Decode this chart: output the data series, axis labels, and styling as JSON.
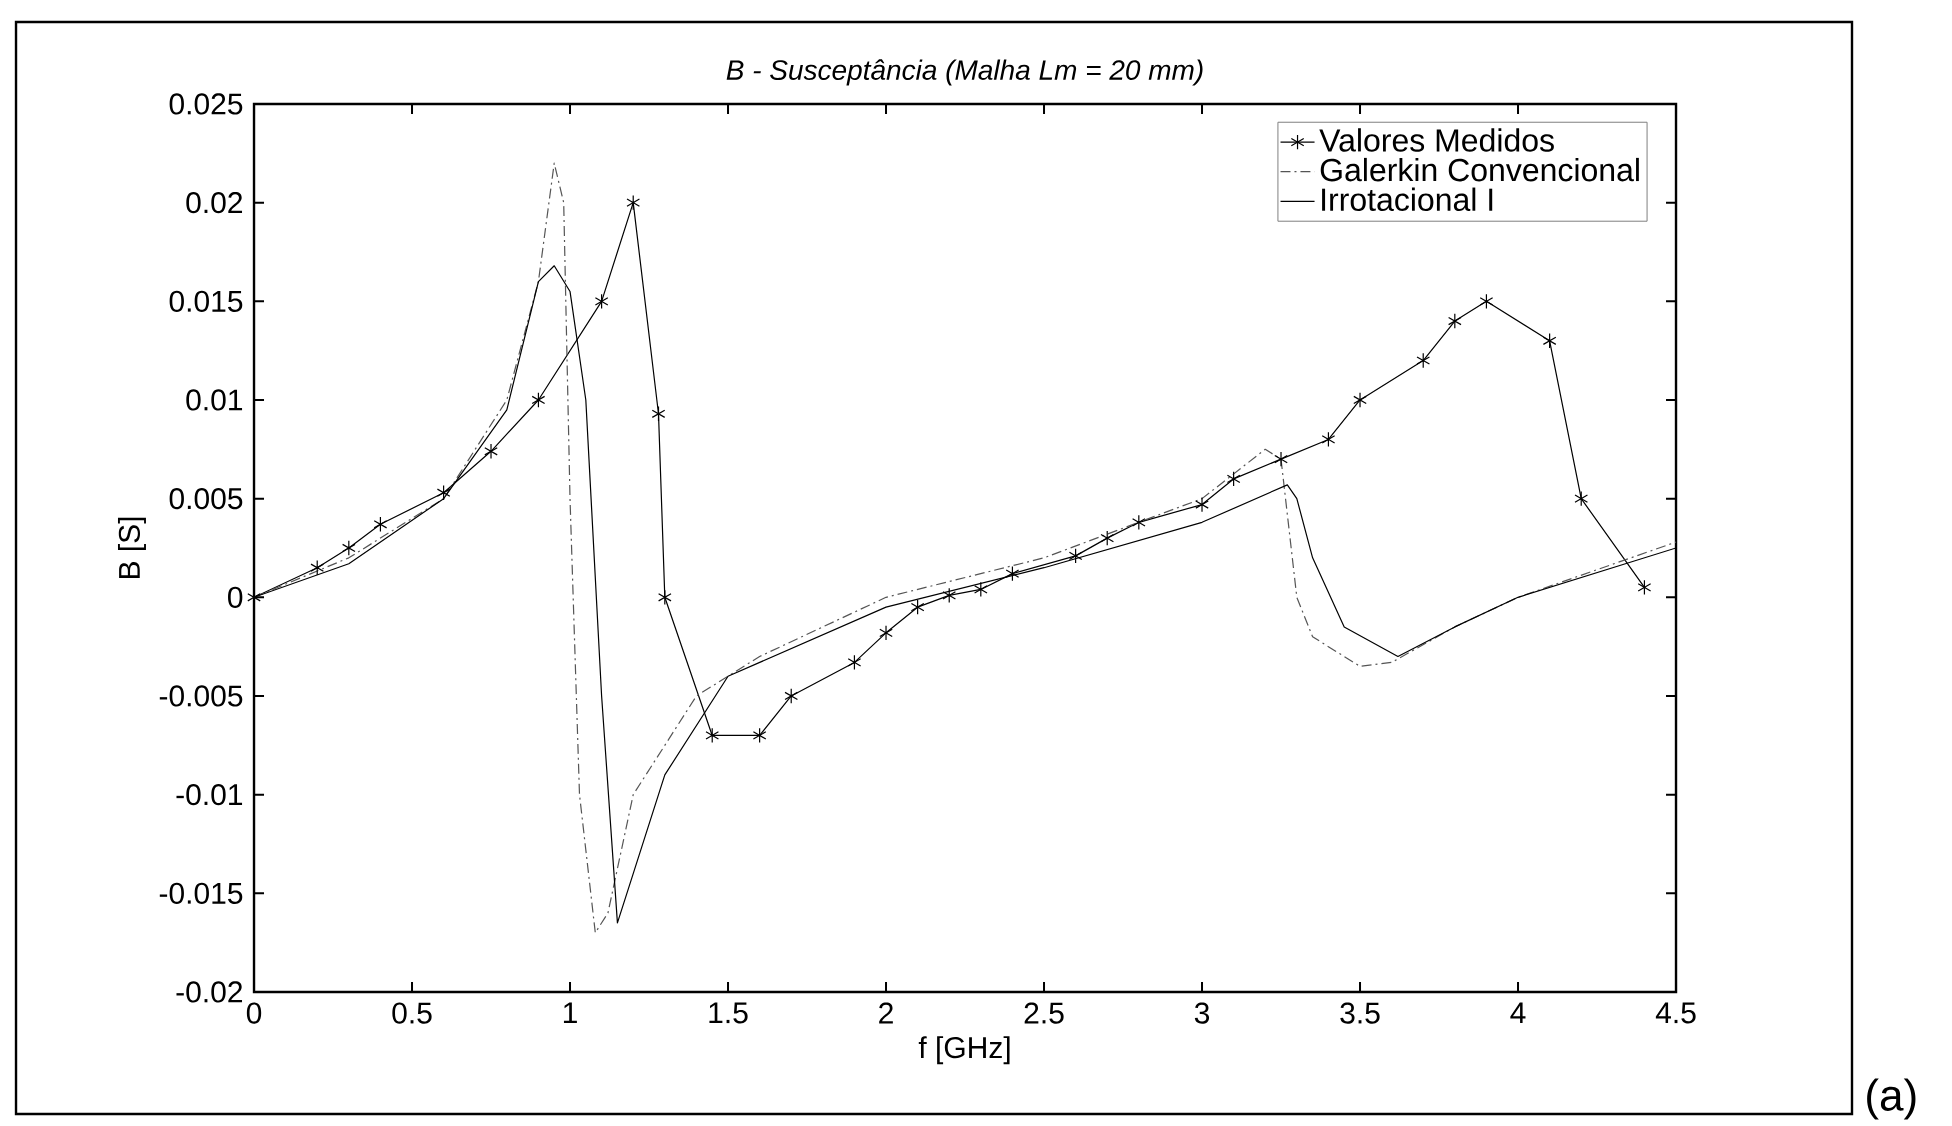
{
  "chart_data": {
    "type": "line",
    "title": "*B - Susceptância (Malha Lm = 20 mm)*",
    "xlabel": "f [GHz]",
    "ylabel": "B [S]",
    "xlim": [
      0,
      4.5
    ],
    "ylim": [
      -0.02,
      0.025
    ],
    "xticks": [
      0,
      0.5,
      1,
      1.5,
      2,
      2.5,
      3,
      3.5,
      4,
      4.5
    ],
    "yticks": [
      -0.02,
      -0.015,
      -0.01,
      -0.005,
      0,
      0.005,
      0.01,
      0.015,
      0.02,
      0.025
    ],
    "grid": false,
    "legend": "top right",
    "annotations": [
      "(a)"
    ],
    "series": [
      {
        "name": "Valores Medidos",
        "color": "#000000",
        "marker": "cross",
        "line_style": "solid",
        "x": [
          0,
          0.2,
          0.3,
          0.4,
          0.6,
          0.75,
          0.9,
          1.1,
          1.2,
          1.28,
          1.3,
          1.45,
          1.6,
          1.7,
          1.9,
          2.0,
          2.1,
          2.2,
          2.3,
          2.4,
          2.6,
          2.7,
          2.8,
          3.0,
          3.1,
          3.25,
          3.4,
          3.5,
          3.7,
          3.8,
          3.9,
          4.1,
          4.2,
          4.4
        ],
        "values": [
          0,
          0.0015,
          0.0025,
          0.0037,
          0.0053,
          0.0074,
          0.01,
          0.015,
          0.02,
          0.0093,
          0,
          -0.007,
          -0.007,
          -0.005,
          -0.0033,
          -0.0018,
          -0.0005,
          0.0001,
          0.0004,
          0.0012,
          0.0021,
          0.003,
          0.0038,
          0.0047,
          0.006,
          0.007,
          0.008,
          0.01,
          0.012,
          0.014,
          0.015,
          0.013,
          0.005,
          0.0005
        ]
      },
      {
        "name": "Galerkin Convencional",
        "color": "#555555",
        "marker": "none",
        "line_style": "dashdot",
        "x": [
          0,
          0.3,
          0.6,
          0.8,
          0.9,
          0.95,
          0.98,
          1.0,
          1.03,
          1.08,
          1.12,
          1.2,
          1.4,
          1.6,
          2.0,
          2.5,
          3.0,
          3.2,
          3.25,
          3.3,
          3.35,
          3.5,
          3.6,
          3.8,
          4.0,
          4.5
        ],
        "values": [
          0,
          0.002,
          0.005,
          0.01,
          0.016,
          0.022,
          0.02,
          0.005,
          -0.01,
          -0.017,
          -0.016,
          -0.01,
          -0.005,
          -0.003,
          0,
          0.002,
          0.005,
          0.0075,
          0.007,
          0,
          -0.002,
          -0.0035,
          -0.0033,
          -0.0015,
          0,
          0.0028
        ]
      },
      {
        "name": "Irrotacional I",
        "color": "#000000",
        "marker": "none",
        "line_style": "solid",
        "x": [
          0,
          0.3,
          0.6,
          0.8,
          0.9,
          0.95,
          1.0,
          1.05,
          1.1,
          1.15,
          1.2,
          1.3,
          1.5,
          2.0,
          2.5,
          3.0,
          3.27,
          3.3,
          3.35,
          3.45,
          3.62,
          3.8,
          4.0,
          4.5
        ],
        "values": [
          0,
          0.0017,
          0.005,
          0.0095,
          0.016,
          0.0168,
          0.0155,
          0.01,
          -0.005,
          -0.0165,
          -0.014,
          -0.009,
          -0.004,
          -0.0005,
          0.0015,
          0.0038,
          0.0057,
          0.005,
          0.002,
          -0.0015,
          -0.003,
          -0.0015,
          0,
          0.0025
        ]
      }
    ]
  }
}
